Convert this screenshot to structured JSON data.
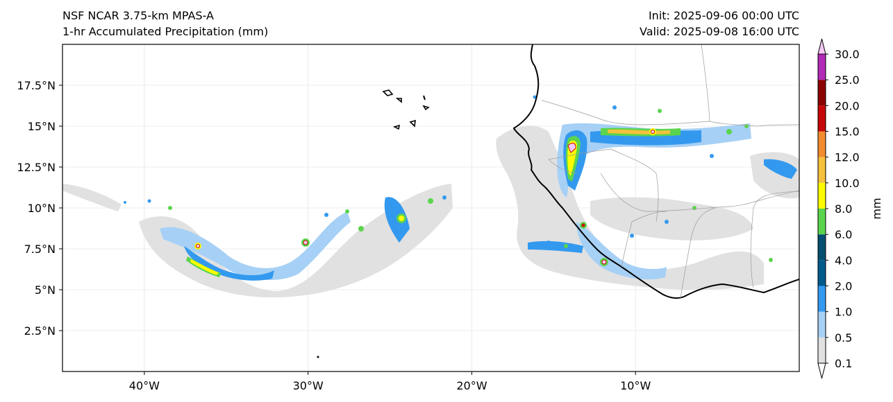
{
  "header": {
    "model": "NSF NCAR 3.75-km MPAS-A",
    "field": "1-hr Accumulated Precipitation (mm)",
    "init": "Init: 2025-09-06 00:00 UTC",
    "valid": "Valid: 2025-09-08 16:00 UTC"
  },
  "map": {
    "lon_range": [
      -45,
      0
    ],
    "lat_range": [
      0,
      20
    ],
    "lon_ticks": [
      -40,
      -30,
      -20,
      -10
    ],
    "lon_tick_labels": [
      "40°W",
      "30°W",
      "20°W",
      "10°W"
    ],
    "lat_ticks": [
      2.5,
      5,
      7.5,
      10,
      12.5,
      15,
      17.5
    ],
    "lat_tick_labels": [
      "2.5°N",
      "5°N",
      "7.5°N",
      "10°N",
      "12.5°N",
      "15°N",
      "17.5°N"
    ]
  },
  "colorbar": {
    "label": "mm",
    "levels": [
      0.1,
      0.5,
      1.0,
      2.0,
      4.0,
      6.0,
      8.0,
      10.0,
      12.0,
      15.0,
      20.0,
      25.0,
      30.0
    ],
    "level_labels": [
      "0.1",
      "0.5",
      "1.0",
      "2.0",
      "4.0",
      "6.0",
      "8.0",
      "10.0",
      "12.0",
      "15.0",
      "20.0",
      "25.0",
      "30.0"
    ],
    "colors": [
      "#e1e1e1",
      "#a6d0f5",
      "#3399ef",
      "#005a8c",
      "#054f70",
      "#5bd44d",
      "#fcfc00",
      "#f5c13c",
      "#f28c2f",
      "#c70707",
      "#8b0000",
      "#b22ab8",
      "#f7c8f5"
    ]
  }
}
